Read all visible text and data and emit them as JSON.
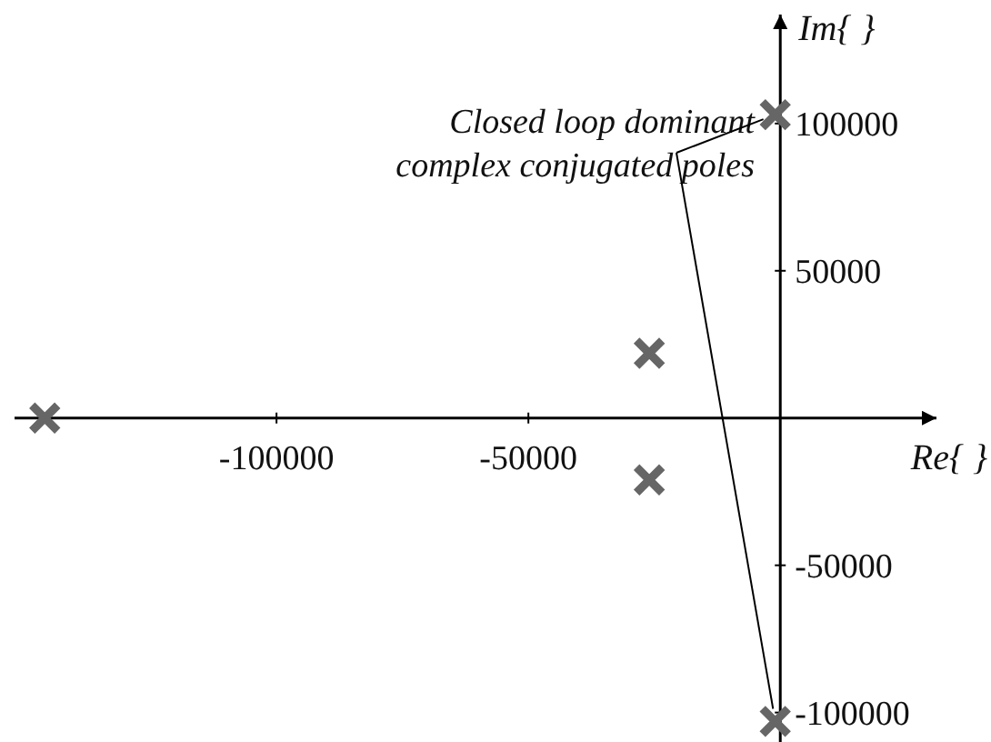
{
  "chart_data": {
    "type": "scatter",
    "xlabel": "Re{ }",
    "ylabel": "Im{ }",
    "x": [
      -1000,
      -1000,
      -146000,
      -26000,
      -26000
    ],
    "values": [
      103000,
      -103000,
      0,
      22000,
      -21000
    ],
    "color": "#666666",
    "marker": "cross",
    "xlim": [
      -152000,
      31000
    ],
    "ylim": [
      -110000,
      137000
    ],
    "xticks": [
      -100000,
      -50000
    ],
    "yticks": [
      -100000,
      -50000,
      50000,
      100000
    ],
    "annotations": [
      "Closed loop dominant\ncomplex conjugated poles"
    ],
    "line_style": "solid"
  }
}
